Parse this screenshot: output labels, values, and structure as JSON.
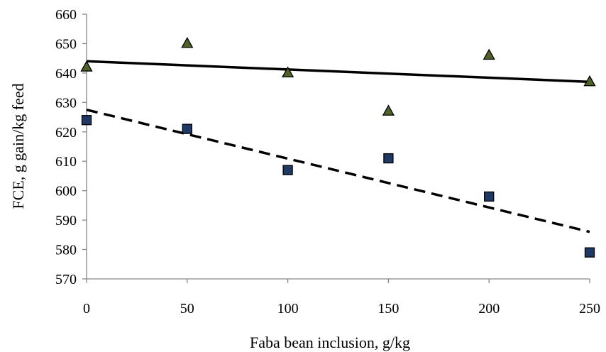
{
  "chart_data": {
    "type": "scatter",
    "xlabel": "Faba bean inclusion, g/kg",
    "ylabel": "FCE, g gain/kg feed",
    "xlim": [
      0,
      250
    ],
    "ylim": [
      570,
      660
    ],
    "x_ticks": [
      0,
      50,
      100,
      150,
      200,
      250
    ],
    "y_ticks": [
      570,
      580,
      590,
      600,
      610,
      620,
      630,
      640,
      650,
      660
    ],
    "grid": false,
    "legend": "none",
    "series": [
      {
        "marker": "triangle",
        "color": "#4f6228",
        "x": [
          0,
          50,
          100,
          150,
          200,
          250
        ],
        "y": [
          642,
          650,
          640,
          627,
          646,
          637
        ],
        "trendline": {
          "style": "solid",
          "color": "#000000",
          "y_at_0": 644,
          "y_at_250": 637
        }
      },
      {
        "marker": "square",
        "color": "#1f3864",
        "x": [
          0,
          50,
          100,
          150,
          200,
          250
        ],
        "y": [
          624,
          621,
          607,
          611,
          598,
          579
        ],
        "trendline": {
          "style": "dashed",
          "color": "#000000",
          "y_at_0": 627.5,
          "y_at_250": 586
        }
      }
    ]
  }
}
